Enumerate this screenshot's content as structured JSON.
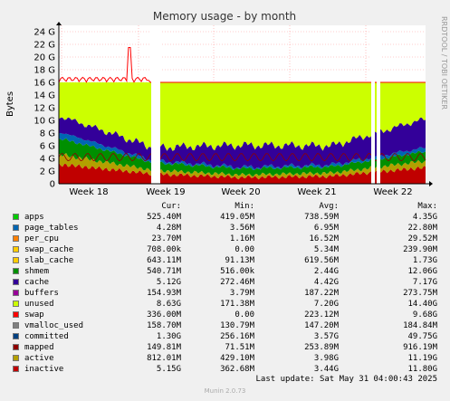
{
  "chart_data": {
    "type": "area",
    "title": "Memory usage - by month",
    "ylabel": "Bytes",
    "ylim": [
      0,
      25
    ],
    "y_unit": "G",
    "yticks": [
      "0",
      "2 G",
      "4 G",
      "6 G",
      "8 G",
      "10 G",
      "12 G",
      "14 G",
      "16 G",
      "18 G",
      "20 G",
      "22 G",
      "24 G"
    ],
    "x_labels": [
      "Week 18",
      "Week 19",
      "Week 20",
      "Week 21",
      "Week 22"
    ],
    "grid": true,
    "side_text": "RRDTOOL / TOBI OETIKER",
    "approx_stack_gb_by_week": {
      "weeks": [
        "Week 18",
        "Week 19",
        "Week 20",
        "Week 21",
        "Week 22"
      ],
      "inactive": [
        3.0,
        1.5,
        1.0,
        1.2,
        2.5
      ],
      "active": [
        1.5,
        0.6,
        0.4,
        0.5,
        1.0
      ],
      "shmem": [
        2.5,
        1.2,
        1.0,
        1.0,
        1.5
      ],
      "page_tables": [
        1.0,
        0.3,
        0.2,
        0.3,
        0.6
      ],
      "cache": [
        2.5,
        2.0,
        3.5,
        3.0,
        4.5
      ],
      "unused": [
        5.5,
        10.0,
        9.9,
        10.0,
        5.9
      ]
    },
    "legend_headers": {
      "cur": "Cur:",
      "min": "Min:",
      "avg": "Avg:",
      "max": "Max:"
    },
    "series": [
      {
        "name": "apps",
        "color": "#00cc00",
        "cur": "525.40M",
        "min": "419.05M",
        "avg": "738.59M",
        "max": "4.35G"
      },
      {
        "name": "page_tables",
        "color": "#0066b3",
        "cur": "4.28M",
        "min": "3.56M",
        "avg": "6.95M",
        "max": "22.80M"
      },
      {
        "name": "per_cpu",
        "color": "#ff8000",
        "cur": "23.70M",
        "min": "1.16M",
        "avg": "16.52M",
        "max": "29.52M"
      },
      {
        "name": "swap_cache",
        "color": "#ffcc00",
        "cur": "708.00k",
        "min": "0.00",
        "avg": "5.34M",
        "max": "239.90M"
      },
      {
        "name": "slab_cache",
        "color": "#ffcc00",
        "cur": "643.11M",
        "min": "91.13M",
        "avg": "619.56M",
        "max": "1.73G"
      },
      {
        "name": "shmem",
        "color": "#008f00",
        "cur": "540.71M",
        "min": "516.00k",
        "avg": "2.44G",
        "max": "12.06G"
      },
      {
        "name": "cache",
        "color": "#330099",
        "cur": "5.12G",
        "min": "272.46M",
        "avg": "4.42G",
        "max": "7.17G"
      },
      {
        "name": "buffers",
        "color": "#990099",
        "cur": "154.93M",
        "min": "3.79M",
        "avg": "187.22M",
        "max": "273.75M"
      },
      {
        "name": "unused",
        "color": "#ccff00",
        "cur": "8.63G",
        "min": "171.38M",
        "avg": "7.20G",
        "max": "14.40G"
      },
      {
        "name": "swap",
        "color": "#ff0000",
        "cur": "336.00M",
        "min": "0.00",
        "avg": "223.12M",
        "max": "9.68G"
      },
      {
        "name": "vmalloc_used",
        "color": "#808080",
        "cur": "158.70M",
        "min": "130.79M",
        "avg": "147.20M",
        "max": "184.84M"
      },
      {
        "name": "committed",
        "color": "#004080",
        "cur": "1.30G",
        "min": "256.16M",
        "avg": "3.57G",
        "max": "49.75G"
      },
      {
        "name": "mapped",
        "color": "#8f0000",
        "cur": "149.81M",
        "min": "71.51M",
        "avg": "253.89M",
        "max": "916.19M"
      },
      {
        "name": "active",
        "color": "#b3a000",
        "cur": "812.01M",
        "min": "429.10M",
        "avg": "3.98G",
        "max": "11.19G"
      },
      {
        "name": "inactive",
        "color": "#c00000",
        "cur": "5.15G",
        "min": "362.68M",
        "avg": "3.44G",
        "max": "11.80G"
      }
    ],
    "last_update": "Last update: Sat May 31 04:00:43 2025",
    "footer": "Munin 2.0.73"
  }
}
